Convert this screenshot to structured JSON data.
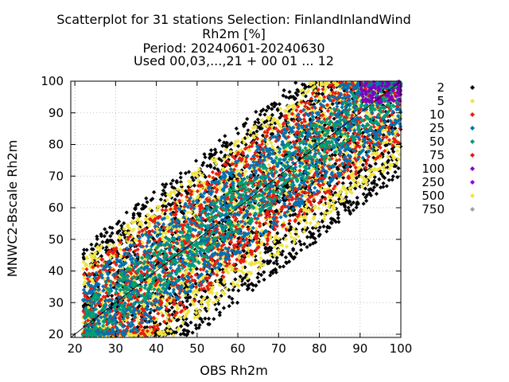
{
  "chart_data": {
    "type": "scatter",
    "title_lines": [
      "Scatterplot for   31 stations Selection: FinlandInlandWind",
      "Rh2m [%]",
      "Period: 20240601-20240630",
      "Used 00,03,...,21 + 00 01 ... 12"
    ],
    "xlabel": "OBS Rh2m",
    "ylabel": "MNWC2-Bscale Rh2m",
    "xlim": [
      19,
      100
    ],
    "ylim": [
      19,
      100
    ],
    "xticks": [
      20,
      30,
      40,
      50,
      60,
      70,
      80,
      90,
      100
    ],
    "yticks": [
      20,
      30,
      40,
      50,
      60,
      70,
      80,
      90,
      100
    ],
    "grid": true,
    "diagonal": true,
    "legend_position": "right",
    "point_marker": "diamond",
    "density_legend": [
      {
        "label": "2",
        "color": "#000000"
      },
      {
        "label": "5",
        "color": "#f0e442"
      },
      {
        "label": "10",
        "color": "#e51e10"
      },
      {
        "label": "25",
        "color": "#0072b2"
      },
      {
        "label": "50",
        "color": "#009e73"
      },
      {
        "label": "75",
        "color": "#e51e10"
      },
      {
        "label": "100",
        "color": "#7f00bf"
      },
      {
        "label": "250",
        "color": "#9400d3"
      },
      {
        "label": "500",
        "color": "#f0e442"
      },
      {
        "label": "750",
        "color": "#a0a0a0"
      }
    ],
    "density_bands": [
      {
        "class": "2",
        "color": "#000000",
        "offset_range": [
          -30,
          26
        ]
      },
      {
        "class": "5",
        "color": "#f0e442",
        "offset_range": [
          -25,
          22
        ]
      },
      {
        "class": "10",
        "color": "#e51e10",
        "offset_range": [
          -19,
          18
        ]
      },
      {
        "class": "25",
        "color": "#0072b2",
        "offset_range": [
          -15,
          15
        ]
      },
      {
        "class": "50",
        "color": "#009e73",
        "offset_range": [
          -8,
          8
        ]
      },
      {
        "class": "100",
        "color": "#7f00bf",
        "x_range": [
          90,
          100
        ],
        "y_range": [
          93,
          100
        ]
      }
    ]
  }
}
